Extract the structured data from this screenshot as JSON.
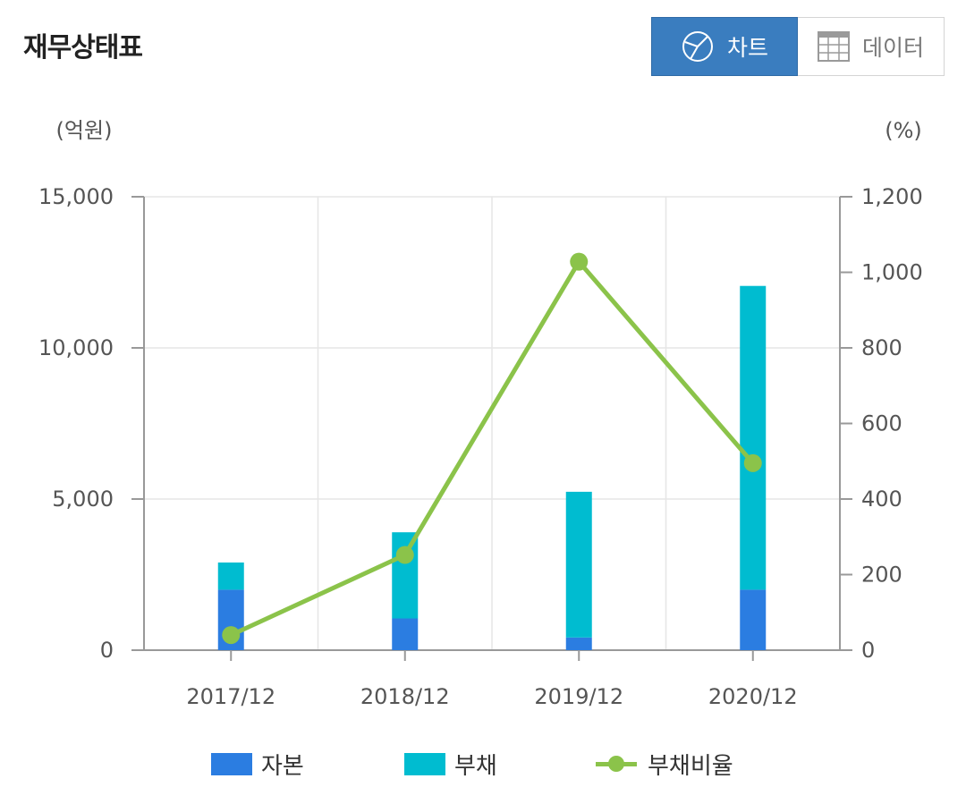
{
  "header": {
    "title": "재무상태표",
    "chart_button": "차트",
    "data_button": "데이터"
  },
  "icons": {
    "chart_button_icon": "pie-chart-icon",
    "data_button_icon": "table-grid-icon"
  },
  "colors": {
    "equity": "#2b7de1",
    "liabilities": "#00bcd0",
    "debt_ratio": "#8bc34a",
    "active_button": "#3a7dbf"
  },
  "chart_data": {
    "type": "bar",
    "stacked": true,
    "categories": [
      "2017/12",
      "2018/12",
      "2019/12",
      "2020/12"
    ],
    "y_left": {
      "unit_label": "(억원)",
      "range": [
        0,
        15000
      ],
      "ticks": [
        0,
        5000,
        10000,
        15000
      ],
      "tick_labels": [
        "0",
        "5,000",
        "10,000",
        "15,000"
      ]
    },
    "y_right": {
      "unit_label": "(%)",
      "range": [
        0,
        1200
      ],
      "ticks": [
        0,
        200,
        400,
        600,
        800,
        1000,
        1200
      ],
      "tick_labels": [
        "0",
        "200",
        "400",
        "600",
        "800",
        "1,000",
        "1,200"
      ]
    },
    "series": [
      {
        "name": "자본",
        "type": "bar",
        "axis": "left",
        "values": [
          2000,
          1050,
          420,
          2000
        ]
      },
      {
        "name": "부채",
        "type": "bar",
        "axis": "left",
        "values": [
          900,
          2850,
          4820,
          10050
        ]
      },
      {
        "name": "부채비율",
        "type": "line",
        "axis": "right",
        "values": [
          40,
          252,
          1028,
          495
        ]
      }
    ],
    "grid": true,
    "legend": "bottom"
  }
}
